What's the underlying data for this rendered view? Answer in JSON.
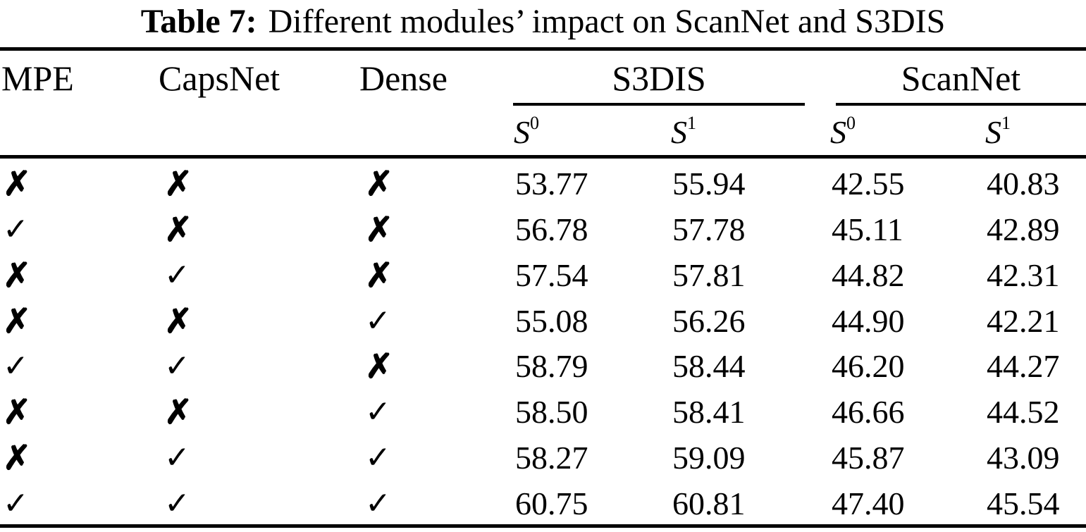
{
  "caption": {
    "label": "Table 7:",
    "text": "Different modules’ impact on ScanNet and S3DIS"
  },
  "table": {
    "module_columns": [
      "MPE",
      "CapsNet",
      "Dense"
    ],
    "groups": [
      {
        "label": "S3DIS",
        "subcolumns": [
          {
            "base": "S",
            "sup": "0"
          },
          {
            "base": "S",
            "sup": "1"
          }
        ]
      },
      {
        "label": "ScanNet",
        "subcolumns": [
          {
            "base": "S",
            "sup": "0"
          },
          {
            "base": "S",
            "sup": "1"
          }
        ]
      }
    ],
    "mark_glyphs": {
      "cross": "✗",
      "check": "✓"
    },
    "rows": [
      {
        "marks": [
          "✗",
          "✗",
          "✗"
        ],
        "values": [
          "53.77",
          "55.94",
          "42.55",
          "40.83"
        ]
      },
      {
        "marks": [
          "✓",
          "✗",
          "✗"
        ],
        "values": [
          "56.78",
          "57.78",
          "45.11",
          "42.89"
        ]
      },
      {
        "marks": [
          "✗",
          "✓",
          "✗"
        ],
        "values": [
          "57.54",
          "57.81",
          "44.82",
          "42.31"
        ]
      },
      {
        "marks": [
          "✗",
          "✗",
          "✓"
        ],
        "values": [
          "55.08",
          "56.26",
          "44.90",
          "42.21"
        ]
      },
      {
        "marks": [
          "✓",
          "✓",
          "✗"
        ],
        "values": [
          "58.79",
          "58.44",
          "46.20",
          "44.27"
        ]
      },
      {
        "marks": [
          "✗",
          "✗",
          "✓"
        ],
        "values": [
          "58.50",
          "58.41",
          "46.66",
          "44.52"
        ]
      },
      {
        "marks": [
          "✗",
          "✓",
          "✓"
        ],
        "values": [
          "58.27",
          "59.09",
          "45.87",
          "43.09"
        ]
      },
      {
        "marks": [
          "✓",
          "✓",
          "✓"
        ],
        "values": [
          "60.75",
          "60.81",
          "47.40",
          "45.54"
        ]
      }
    ]
  },
  "colors": {
    "background": "#ffffff",
    "text": "#000000",
    "rule": "#000000"
  }
}
